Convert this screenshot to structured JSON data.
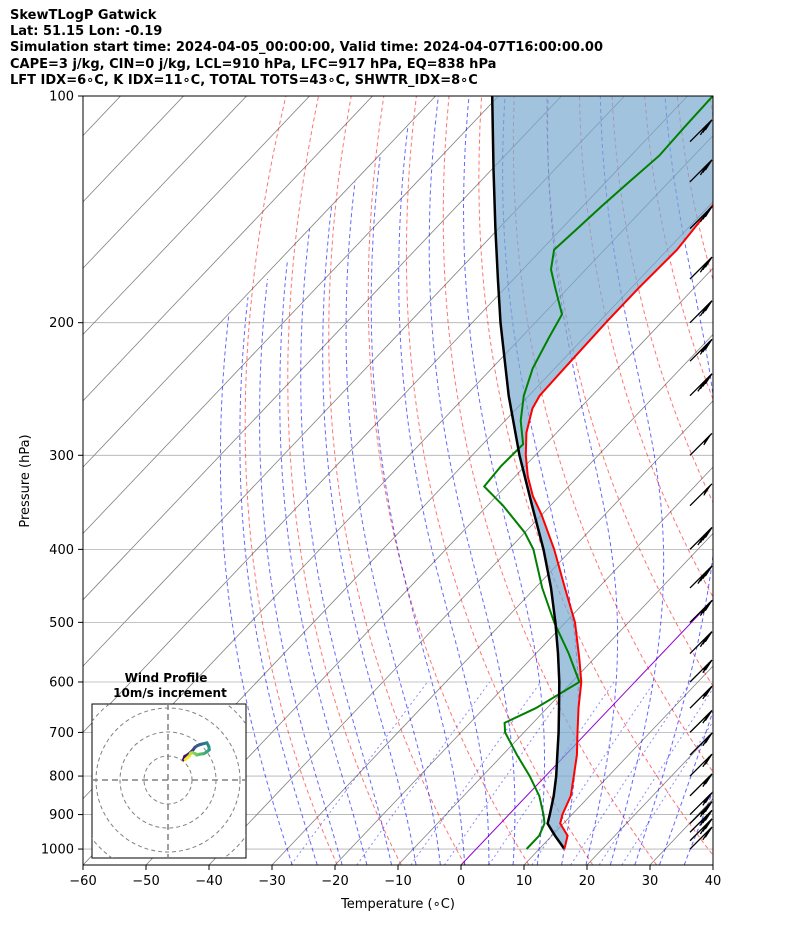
{
  "header": {
    "line1": "SkewTLogP Gatwick",
    "line2": "Lat: 51.15   Lon: -0.19",
    "line3": "Simulation start time: 2024-04-05_00:00:00, Valid time: 2024-04-07T16:00:00.00",
    "line4": "CAPE=3 j/kg, CIN=0 j/kg, LCL=910 hPa, LFC=917 hPa, EQ=838 hPa",
    "line5": "LFT IDX=6∘C, K IDX=11∘C, TOTAL TOTS=43∘C, SHWTR_IDX=8∘C"
  },
  "colors": {
    "temperature": "#ff0000",
    "dewpoint": "#008000",
    "parcel": "#000000",
    "cape_fill": "#7aa9d0",
    "dry_adiabat": "#ff0000",
    "moist_adiabat": "#0000ff",
    "mixing_ratio": "#0000ff",
    "isotherm": "#808080",
    "zero_isotherm": "#9400d3"
  },
  "chart_data": {
    "type": "skewt",
    "xlabel": "Temperature (∘C)",
    "ylabel": "Pressure (hPa)",
    "xlim": [
      -60,
      40
    ],
    "ylim": [
      1050,
      100
    ],
    "y_scale": "log",
    "xticks": [
      "−60",
      "−50",
      "−40",
      "−30",
      "−20",
      "−10",
      "0",
      "10",
      "20",
      "30",
      "40"
    ],
    "yticks": [
      {
        "p": 100,
        "label": "100"
      },
      {
        "p": 200,
        "label": "200"
      },
      {
        "p": 300,
        "label": "300"
      },
      {
        "p": 400,
        "label": "400"
      },
      {
        "p": 500,
        "label": "500"
      },
      {
        "p": 600,
        "label": "600"
      },
      {
        "p": 700,
        "label": "700"
      },
      {
        "p": 800,
        "label": "800"
      },
      {
        "p": 900,
        "label": "900"
      },
      {
        "p": 1000,
        "label": "1000"
      }
    ],
    "grid": true,
    "temperature": [
      {
        "p": 1000,
        "t": 14.0
      },
      {
        "p": 960,
        "t": 12.5
      },
      {
        "p": 925,
        "t": 9.5
      },
      {
        "p": 900,
        "t": 8.5
      },
      {
        "p": 850,
        "t": 7.0
      },
      {
        "p": 800,
        "t": 4.5
      },
      {
        "p": 750,
        "t": 1.8
      },
      {
        "p": 700,
        "t": -1.5
      },
      {
        "p": 650,
        "t": -5.0
      },
      {
        "p": 600,
        "t": -8.5
      },
      {
        "p": 560,
        "t": -12.2
      },
      {
        "p": 500,
        "t": -18.5
      },
      {
        "p": 450,
        "t": -25.3
      },
      {
        "p": 400,
        "t": -32.8
      },
      {
        "p": 360,
        "t": -40.0
      },
      {
        "p": 340,
        "t": -44.2
      },
      {
        "p": 320,
        "t": -48.0
      },
      {
        "p": 300,
        "t": -51.5
      },
      {
        "p": 280,
        "t": -54.8
      },
      {
        "p": 260,
        "t": -57.5
      },
      {
        "p": 250,
        "t": -58.3
      },
      {
        "p": 230,
        "t": -58.5
      },
      {
        "p": 200,
        "t": -58.8
      },
      {
        "p": 180,
        "t": -58.8
      },
      {
        "p": 160,
        "t": -58.5
      },
      {
        "p": 140,
        "t": -59.5
      },
      {
        "p": 120,
        "t": -60.2
      },
      {
        "p": 110,
        "t": -59.5
      },
      {
        "p": 100,
        "t": -58.2
      }
    ],
    "dewpoint": [
      {
        "p": 1000,
        "td": 8.0
      },
      {
        "p": 960,
        "td": 8.0
      },
      {
        "p": 925,
        "td": 7.0
      },
      {
        "p": 900,
        "td": 5.5
      },
      {
        "p": 850,
        "td": 2.0
      },
      {
        "p": 800,
        "td": -2.5
      },
      {
        "p": 750,
        "td": -7.7
      },
      {
        "p": 700,
        "td": -13.0
      },
      {
        "p": 680,
        "td": -14.5
      },
      {
        "p": 650,
        "td": -11.8
      },
      {
        "p": 600,
        "td": -8.8
      },
      {
        "p": 550,
        "td": -14.8
      },
      {
        "p": 500,
        "td": -21.8
      },
      {
        "p": 450,
        "td": -28.9
      },
      {
        "p": 400,
        "td": -36.1
      },
      {
        "p": 380,
        "td": -40.0
      },
      {
        "p": 350,
        "td": -47.5
      },
      {
        "p": 330,
        "td": -53.4
      },
      {
        "p": 310,
        "td": -53.8
      },
      {
        "p": 290,
        "td": -53.6
      },
      {
        "p": 270,
        "td": -57.5
      },
      {
        "p": 250,
        "td": -60.8
      },
      {
        "p": 230,
        "td": -63.5
      },
      {
        "p": 210,
        "td": -65.5
      },
      {
        "p": 195,
        "td": -67.0
      },
      {
        "p": 180,
        "td": -72.0
      },
      {
        "p": 170,
        "td": -75.5
      },
      {
        "p": 160,
        "td": -78.0
      },
      {
        "p": 150,
        "td": -77.5
      },
      {
        "p": 140,
        "td": -77.0
      },
      {
        "p": 130,
        "td": -76.3
      },
      {
        "p": 120,
        "td": -75.5
      },
      {
        "p": 110,
        "td": -75.8
      },
      {
        "p": 100,
        "td": -76.0
      }
    ],
    "parcel": [
      {
        "p": 1000,
        "t": 14.0
      },
      {
        "p": 960,
        "t": 10.5
      },
      {
        "p": 925,
        "t": 7.5
      },
      {
        "p": 900,
        "t": 6.5
      },
      {
        "p": 850,
        "t": 4.3
      },
      {
        "p": 800,
        "t": 1.7
      },
      {
        "p": 750,
        "t": -1.3
      },
      {
        "p": 700,
        "t": -4.5
      },
      {
        "p": 650,
        "t": -8.1
      },
      {
        "p": 600,
        "t": -12.0
      },
      {
        "p": 550,
        "t": -16.5
      },
      {
        "p": 500,
        "t": -21.6
      },
      {
        "p": 450,
        "t": -27.5
      },
      {
        "p": 400,
        "t": -34.5
      },
      {
        "p": 350,
        "t": -42.9
      },
      {
        "p": 300,
        "t": -52.5
      },
      {
        "p": 250,
        "t": -63.2
      },
      {
        "p": 200,
        "t": -75.5
      },
      {
        "p": 175,
        "t": -82.5
      },
      {
        "p": 150,
        "t": -90.5
      },
      {
        "p": 125,
        "t": -99.8
      },
      {
        "p": 100,
        "t": -111.0
      }
    ],
    "wind_barbs": [
      {
        "p": 1000,
        "flags": 0,
        "full": 2,
        "half": 0
      },
      {
        "p": 975,
        "flags": 0,
        "full": 3,
        "half": 0
      },
      {
        "p": 950,
        "flags": 0,
        "full": 3,
        "half": 1
      },
      {
        "p": 925,
        "flags": 0,
        "full": 3,
        "half": 1
      },
      {
        "p": 900,
        "flags": 0,
        "full": 2,
        "half": 1
      },
      {
        "p": 850,
        "flags": 0,
        "full": 2,
        "half": 1
      },
      {
        "p": 800,
        "flags": 0,
        "full": 2,
        "half": 0
      },
      {
        "p": 750,
        "flags": 0,
        "full": 2,
        "half": 0
      },
      {
        "p": 700,
        "flags": 0,
        "full": 2,
        "half": 0
      },
      {
        "p": 650,
        "flags": 0,
        "full": 2,
        "half": 1
      },
      {
        "p": 600,
        "flags": 0,
        "full": 2,
        "half": 1
      },
      {
        "p": 550,
        "flags": 0,
        "full": 3,
        "half": 0
      },
      {
        "p": 500,
        "flags": 0,
        "full": 3,
        "half": 1
      },
      {
        "p": 450,
        "flags": 0,
        "full": 4,
        "half": 0
      },
      {
        "p": 400,
        "flags": 0,
        "full": 4,
        "half": 0
      },
      {
        "p": 350,
        "flags": 1,
        "full": 0,
        "half": 0
      },
      {
        "p": 300,
        "flags": 1,
        "full": 0,
        "half": 0
      },
      {
        "p": 250,
        "flags": 0,
        "full": 4,
        "half": 0
      },
      {
        "p": 225,
        "flags": 0,
        "full": 3,
        "half": 1
      },
      {
        "p": 200,
        "flags": 0,
        "full": 3,
        "half": 0
      },
      {
        "p": 175,
        "flags": 0,
        "full": 3,
        "half": 0
      },
      {
        "p": 150,
        "flags": 0,
        "full": 3,
        "half": 0
      },
      {
        "p": 130,
        "flags": 0,
        "full": 3,
        "half": 0
      },
      {
        "p": 115,
        "flags": 0,
        "full": 3,
        "half": 0
      }
    ],
    "hodograph": {
      "title": "Wind Profile",
      "subtitle": "10m/s increment",
      "ring_step_ms": 10,
      "points": [
        {
          "u": 6.5,
          "v": 8.5
        },
        {
          "u": 7.0,
          "v": 9.8
        },
        {
          "u": 8.2,
          "v": 10.5
        },
        {
          "u": 9.5,
          "v": 11.6
        },
        {
          "u": 10.4,
          "v": 12.5
        },
        {
          "u": 11.2,
          "v": 13.6
        },
        {
          "u": 12.2,
          "v": 14.3
        },
        {
          "u": 13.8,
          "v": 14.9
        },
        {
          "u": 15.0,
          "v": 15.2
        },
        {
          "u": 16.2,
          "v": 15.5
        },
        {
          "u": 17.0,
          "v": 14.0
        },
        {
          "u": 17.2,
          "v": 12.6
        },
        {
          "u": 16.3,
          "v": 11.8
        },
        {
          "u": 15.0,
          "v": 11.0
        },
        {
          "u": 13.5,
          "v": 10.8
        },
        {
          "u": 12.0,
          "v": 10.4
        },
        {
          "u": 11.3,
          "v": 11.0
        },
        {
          "u": 10.2,
          "v": 11.4
        },
        {
          "u": 9.5,
          "v": 11.2
        },
        {
          "u": 9.0,
          "v": 10.2
        },
        {
          "u": 8.2,
          "v": 9.4
        },
        {
          "u": 7.2,
          "v": 8.5
        }
      ]
    }
  }
}
